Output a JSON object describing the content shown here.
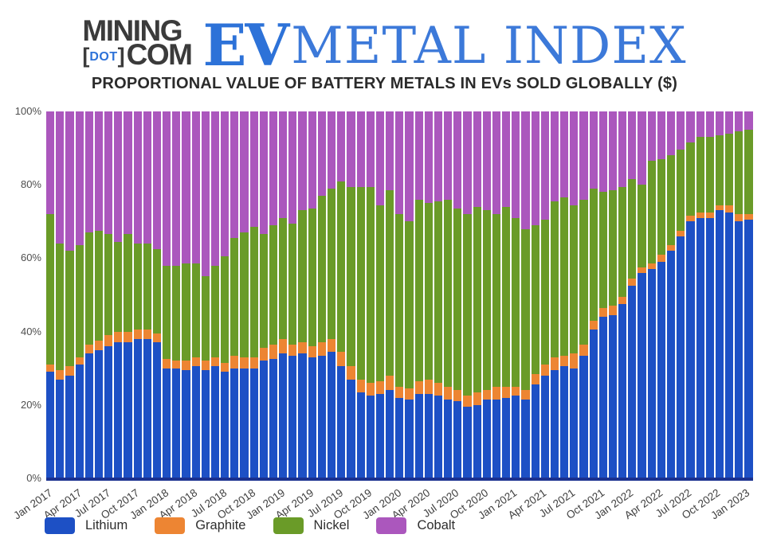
{
  "header": {
    "logo": {
      "mining": "MINING",
      "bracket_open": "[",
      "dot": "DOT",
      "bracket_close": "]",
      "com": "COM",
      "ev": "EV",
      "metal_index": "METAL INDEX"
    },
    "title": "PROPORTIONAL VALUE OF BATTERY METALS IN EVs SOLD GLOBALLY ($)"
  },
  "colors": {
    "lithium": "#1d50c5",
    "graphite": "#ed8533",
    "nickel": "#6a9b28",
    "cobalt": "#ab57bd",
    "axis_baseline": "#1b318f",
    "logo_dark": "#3b3b3b",
    "logo_blue": "#2d72d8",
    "metal_index_blue": "#3c79d9"
  },
  "chart_data": {
    "type": "bar",
    "stacked": true,
    "units": "percent",
    "title": "PROPORTIONAL VALUE OF BATTERY METALS IN EVs SOLD GLOBALLY ($)",
    "ylim": [
      0,
      100
    ],
    "grid": false,
    "legend_position": "bottom",
    "y_ticks": [
      "0%",
      "20%",
      "40%",
      "60%",
      "80%",
      "100%"
    ],
    "x_tick_every": 3,
    "categories": [
      "Jan 2017",
      "Feb 2017",
      "Mar 2017",
      "Apr 2017",
      "May 2017",
      "Jun 2017",
      "Jul 2017",
      "Aug 2017",
      "Sep 2017",
      "Oct 2017",
      "Nov 2017",
      "Dec 2017",
      "Jan 2018",
      "Feb 2018",
      "Mar 2018",
      "Apr 2018",
      "May 2018",
      "Jun 2018",
      "Jul 2018",
      "Aug 2018",
      "Sep 2018",
      "Oct 2018",
      "Nov 2018",
      "Dec 2018",
      "Jan 2019",
      "Feb 2019",
      "Mar 2019",
      "Apr 2019",
      "May 2019",
      "Jun 2019",
      "Jul 2019",
      "Aug 2019",
      "Sep 2019",
      "Oct 2019",
      "Nov 2019",
      "Dec 2019",
      "Jan 2020",
      "Feb 2020",
      "Mar 2020",
      "Apr 2020",
      "May 2020",
      "Jun 2020",
      "Jul 2020",
      "Aug 2020",
      "Sep 2020",
      "Oct 2020",
      "Nov 2020",
      "Dec 2020",
      "Jan 2021",
      "Feb 2021",
      "Mar 2021",
      "Apr 2021",
      "May 2021",
      "Jun 2021",
      "Jul 2021",
      "Aug 2021",
      "Sep 2021",
      "Oct 2021",
      "Nov 2021",
      "Dec 2021",
      "Jan 2022",
      "Feb 2022",
      "Mar 2022",
      "Apr 2022",
      "May 2022",
      "Jun 2022",
      "Jul 2022",
      "Aug 2022",
      "Sep 2022",
      "Oct 2022",
      "Nov 2022",
      "Dec 2022",
      "Jan 2023"
    ],
    "series": [
      {
        "name": "Lithium",
        "color": "#1d50c5",
        "values": [
          29,
          27,
          28,
          31,
          34,
          35,
          36,
          37,
          37,
          38,
          38,
          37,
          30,
          30,
          29.5,
          30.5,
          29.5,
          30.5,
          29,
          30,
          30,
          30,
          32,
          32.5,
          34,
          33.5,
          34,
          33,
          33.5,
          34.5,
          30.5,
          27,
          23.5,
          22.5,
          23,
          24,
          22,
          21.5,
          23,
          23,
          22.5,
          21.5,
          21,
          19.5,
          20,
          21.5,
          21.5,
          22,
          22.5,
          21.5,
          25.5,
          28,
          29.5,
          30.5,
          30,
          33.5,
          40.5,
          44,
          44.5,
          47.5,
          52.5,
          56,
          57,
          59,
          62,
          66,
          70,
          71,
          71,
          73,
          72.5,
          70,
          70.5
        ]
      },
      {
        "name": "Graphite",
        "color": "#ed8533",
        "values": [
          2,
          2.5,
          2.5,
          2,
          2.5,
          2.5,
          3,
          3,
          3,
          2.5,
          2.5,
          2.5,
          2.5,
          2,
          2.5,
          2.5,
          2.5,
          2.5,
          2.5,
          3.5,
          3,
          3,
          3.5,
          4,
          4,
          3,
          3,
          3,
          3.5,
          3.5,
          4,
          3.5,
          3.5,
          3.5,
          3.5,
          4,
          3,
          3,
          3.5,
          4,
          3.5,
          3.5,
          3,
          3,
          3.5,
          2.5,
          3.5,
          3,
          2.5,
          2.5,
          3,
          3,
          3.5,
          3,
          4,
          3,
          2.5,
          2.5,
          2.5,
          2,
          2,
          1.5,
          1.5,
          2,
          1.5,
          1.5,
          1.5,
          1.5,
          1.5,
          1.5,
          2,
          2,
          1.5
        ]
      },
      {
        "name": "Nickel",
        "color": "#6a9b28",
        "values": [
          41,
          34.5,
          31.5,
          30.5,
          30.5,
          30,
          27.5,
          24.5,
          26.5,
          23.5,
          23.5,
          23,
          25.5,
          26,
          26.5,
          25.5,
          23,
          25,
          29,
          32,
          34,
          35.5,
          31,
          32.5,
          33,
          33,
          36,
          37.5,
          40,
          41,
          46.5,
          49,
          52.5,
          53.5,
          48,
          50.5,
          47,
          45.5,
          49.5,
          48,
          49.5,
          51,
          49.5,
          49.5,
          50.5,
          49,
          47,
          49,
          46,
          44,
          40.5,
          39.5,
          42.5,
          43,
          40.5,
          39.5,
          36,
          31.5,
          31.5,
          30,
          27,
          22.5,
          28,
          26,
          24.5,
          22,
          20,
          20.5,
          20.5,
          19,
          19.5,
          22.5,
          23
        ]
      },
      {
        "name": "Cobalt",
        "color": "#ab57bd",
        "values": [
          28,
          36,
          38,
          36.5,
          33,
          32.5,
          33.5,
          35.5,
          33.5,
          36,
          36,
          37.5,
          42,
          42,
          41.5,
          41.5,
          45,
          42,
          39.5,
          34.5,
          33,
          31.5,
          33.5,
          31,
          29,
          30.5,
          27,
          26.5,
          23,
          21,
          19,
          20.5,
          20.5,
          20.5,
          25.5,
          21.5,
          28,
          30,
          24,
          25,
          24.5,
          24,
          26.5,
          28,
          26,
          27,
          28,
          26,
          29,
          32,
          31,
          29.5,
          24.5,
          23.5,
          25.5,
          24,
          21,
          22,
          21.5,
          20.5,
          18.5,
          20,
          13.5,
          13,
          12,
          10.5,
          8.5,
          7,
          7,
          6.5,
          6,
          5.5,
          5
        ]
      }
    ]
  }
}
